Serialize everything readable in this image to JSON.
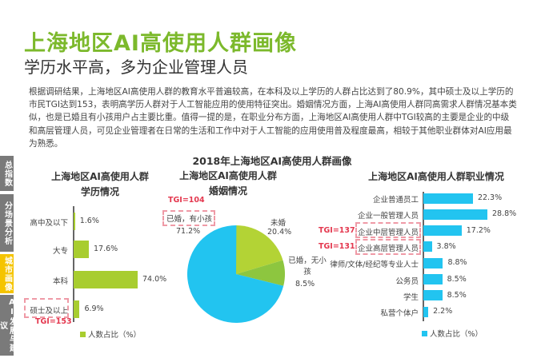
{
  "header": {
    "title": "上海地区AI高使用人群画像",
    "subtitle": "学历水平高，多为企业管理人员"
  },
  "paragraph": "根据调研结果，上海地区AI高使用人群的教育水平普遍较高，在本科及以上学历的人群占比达到了80.9%，其中硕士及以上学历的市民TGI达到153，表明高学历人群对于人工智能应用的使用特征突出。婚姻情况方面，上海AI高使用人群同高需求人群情况基本类似，也是已婚且有小孩用户占主要比重。值得一提的是，在职业分布方面，上海地区AI高使用人群中TGI较高的主要是企业的中级和高层管理人员，可见企业管理者在日常的生活和工作中对于人工智能的应用使用普及程度最高，相较于其他职业群体对AI应用最为熟悉。",
  "sidebar": {
    "items": [
      {
        "label": "总指数",
        "active": false
      },
      {
        "label": "分场景分析",
        "active": false
      },
      {
        "label": "城市画像",
        "active": true
      },
      {
        "label": "AI发展与建议",
        "active": false
      }
    ],
    "colors": {
      "inactive": "#7a7a7a",
      "active": "#f5c400"
    }
  },
  "figure_title": "2018年上海地区AI高使用人群画像",
  "chart_data": [
    {
      "type": "bar",
      "orientation": "horizontal",
      "title_line1": "上海地区AI高使用人群",
      "title_line2": "学历情况",
      "categories": [
        "高中及以下",
        "大专",
        "本科",
        "硕士及以上"
      ],
      "values": [
        1.6,
        17.6,
        74.0,
        6.9
      ],
      "value_labels": [
        "1.6%",
        "17.6%",
        "74.0%",
        "6.9%"
      ],
      "legend": "人数占比（%）",
      "color": "#a8cd2f",
      "annotations": [
        {
          "category": "硕士及以上",
          "text": "TGI=153"
        }
      ]
    },
    {
      "type": "pie",
      "title_line1": "上海地区AI高使用人群",
      "title_line2": "婚姻情况",
      "slices": [
        {
          "label": "未婚",
          "value": 20.4,
          "value_label": "20.4%",
          "color": "#b3d335"
        },
        {
          "label": "已婚，无小孩",
          "value": 8.5,
          "value_label": "8.5%",
          "color": "#8dc63f"
        },
        {
          "label": "已婚，有小孩",
          "value": 71.2,
          "value_label": "71.2%",
          "color": "#22c4f0"
        }
      ],
      "annotations": [
        {
          "slice": "已婚，有小孩",
          "text": "TGI=104"
        }
      ]
    },
    {
      "type": "bar",
      "orientation": "horizontal",
      "title": "上海地区AI高使用人群职业情况",
      "categories": [
        "企业普通员工",
        "企业一般管理人员",
        "企业中层管理人员",
        "企业高层管理人员",
        "律师/文体/经纪等专业人士",
        "公务员",
        "学生",
        "私营个体户"
      ],
      "values": [
        22.3,
        28.8,
        17.2,
        3.8,
        8.8,
        8.5,
        8.5,
        2.2
      ],
      "value_labels": [
        "22.3%",
        "28.8%",
        "17.2%",
        "3.8%",
        "8.8%",
        "8.5%",
        "8.5%",
        "2.2%"
      ],
      "legend": "人数占比（%）",
      "color": "#22c4f0",
      "annotations": [
        {
          "category": "企业中层管理人员",
          "text": "TGI=137"
        },
        {
          "category": "企业高层管理人员",
          "text": "TGI=131"
        }
      ]
    }
  ]
}
